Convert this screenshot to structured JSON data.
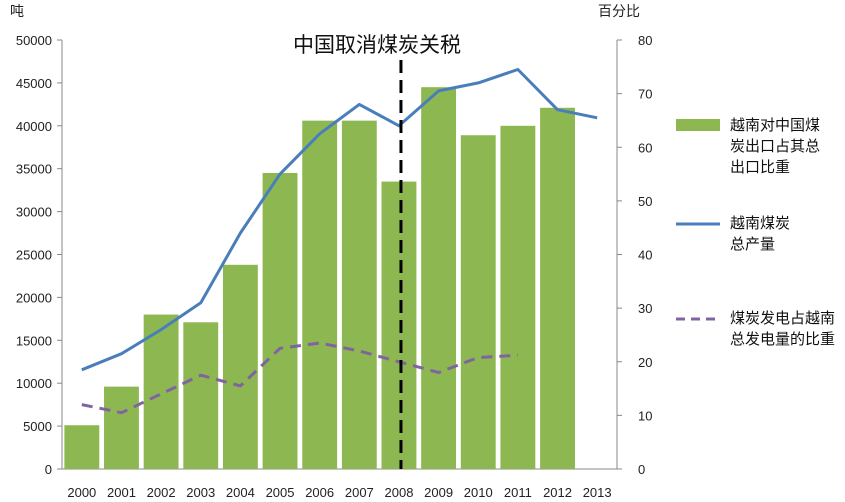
{
  "chart_data": {
    "type": "bar",
    "title": "",
    "annotation": "中国取消煤炭关税",
    "annotation_x": "2008",
    "left_unit": "吨",
    "right_unit": "百分比",
    "categories": [
      "2000",
      "2001",
      "2002",
      "2003",
      "2004",
      "2005",
      "2006",
      "2007",
      "2008",
      "2009",
      "2010",
      "2011",
      "2012",
      "2013"
    ],
    "left_ylim": [
      0,
      50000
    ],
    "left_ticks": [
      "0",
      "5000",
      "10000",
      "15000",
      "20000",
      "25000",
      "30000",
      "35000",
      "40000",
      "45000",
      "50000"
    ],
    "right_ylim": [
      0,
      80
    ],
    "right_ticks": [
      "0",
      "10",
      "20",
      "30",
      "40",
      "50",
      "60",
      "70",
      "80"
    ],
    "series": [
      {
        "name": "越南对中国煤炭出口占其总出口比重",
        "type": "bar",
        "axis": "left",
        "color": "#8db851",
        "values": [
          5100,
          9600,
          18000,
          17100,
          23800,
          34500,
          40600,
          40600,
          33500,
          44500,
          38900,
          40000,
          42100,
          null
        ]
      },
      {
        "name": "越南煤炭总产量",
        "type": "line",
        "axis": "right",
        "color": "#4a7ebb",
        "values": [
          18.5,
          21.5,
          26,
          31,
          44,
          55,
          62.5,
          68,
          64,
          70.5,
          72,
          74.5,
          67,
          65.5
        ]
      },
      {
        "name": "煤炭发电占越南总发电量的比重",
        "type": "line",
        "dash": true,
        "axis": "right",
        "color": "#8064a2",
        "values": [
          12,
          10.5,
          14,
          17.5,
          15.5,
          22.5,
          23.5,
          22,
          20,
          18,
          20.8,
          21.2,
          null,
          null
        ]
      }
    ],
    "legend": [
      {
        "key": "bar",
        "lines": [
          "越南对中国煤",
          "炭出口占其总",
          "出口比重"
        ]
      },
      {
        "key": "line",
        "lines": [
          "越南煤炭",
          "总产量"
        ]
      },
      {
        "key": "dash",
        "lines": [
          "煤炭发电占越南",
          "总发电量的比重"
        ]
      }
    ],
    "legend_position": "right",
    "grid": false
  }
}
